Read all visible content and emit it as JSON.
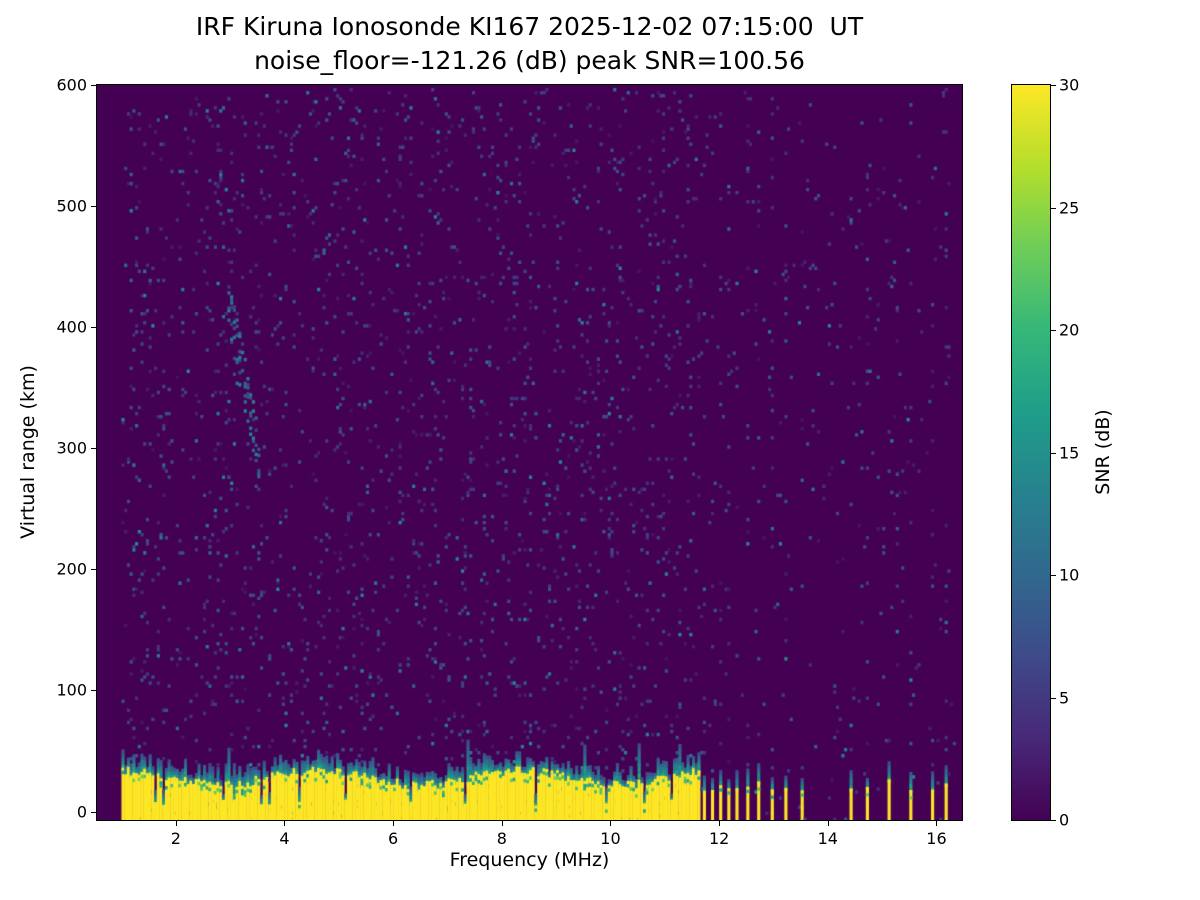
{
  "chart_data": {
    "type": "heatmap",
    "title": "IRF Kiruna Ionosonde KI167 2025-12-02 07:15:00  UT",
    "subtitle": "noise_floor=-121.26 (dB) peak SNR=100.56",
    "station": "KI167",
    "timestamp_ut": "2025-12-02 07:15:00",
    "noise_floor_db": -121.26,
    "peak_snr_db": 100.56,
    "xlabel": "Frequency (MHz)",
    "ylabel": "Virtual range (km)",
    "xlim": [
      0.55,
      16.47
    ],
    "ylim": [
      -7,
      600
    ],
    "xticks": [
      2,
      4,
      6,
      8,
      10,
      12,
      14,
      16
    ],
    "yticks": [
      0,
      100,
      200,
      300,
      400,
      500,
      600
    ],
    "freq_range_mhz": [
      1.0,
      16.3
    ],
    "grid": false,
    "colorbar": {
      "label": "SNR (dB)",
      "ticks": [
        0,
        5,
        10,
        15,
        20,
        25,
        30
      ],
      "vmin": 0,
      "vmax": 30,
      "colormap": "viridis",
      "stops": [
        "#440154",
        "#482878",
        "#3e4a89",
        "#31688e",
        "#26828e",
        "#1f9e89",
        "#35b779",
        "#6dcd59",
        "#b4de2c",
        "#fde725"
      ]
    },
    "colors": {
      "background_low": "#440154",
      "saturated_high": "#fde725",
      "figure_background": "#ffffff",
      "text": "#000000"
    },
    "features": {
      "background_snr_db": 0,
      "noise_speckles": "sparse dark-blue/teal speckle noise up to ~15 dB at all virtual ranges",
      "ground_clutter_band": {
        "freq_mhz": [
          1.0,
          11.62
        ],
        "range_km": [
          -7,
          35
        ],
        "snr_db": 30,
        "fringe": "teal/green fringe extending ~5-20 km above the saturated yellow band"
      },
      "band_notches_mhz": [
        1.6,
        1.75,
        2.85,
        3.05,
        3.55,
        3.7,
        4.25,
        5.1,
        6.3,
        7.3,
        8.6,
        9.9,
        10.6,
        11.1
      ],
      "stripe_region_start_mhz": 11.62,
      "sparse_stripes_mhz": [
        11.7,
        11.85,
        12.0,
        12.15,
        12.3,
        12.5,
        12.7,
        12.95,
        13.2,
        13.5,
        14.4,
        14.7,
        15.1,
        15.5,
        15.9,
        16.15
      ],
      "faint_noise_columns_mhz": [
        13.8,
        14.05,
        14.9,
        15.25,
        15.65
      ],
      "weak_echo_trace": {
        "freq_mhz": [
          2.9,
          3.5
        ],
        "range_km": [
          300,
          430
        ],
        "snr_db_range": [
          5,
          14
        ]
      },
      "stripe_region_note": "above ~11.6 MHz sounding becomes discrete vertical stripes reaching ~25 km; faint full-height noise columns at stripe frequencies"
    }
  }
}
